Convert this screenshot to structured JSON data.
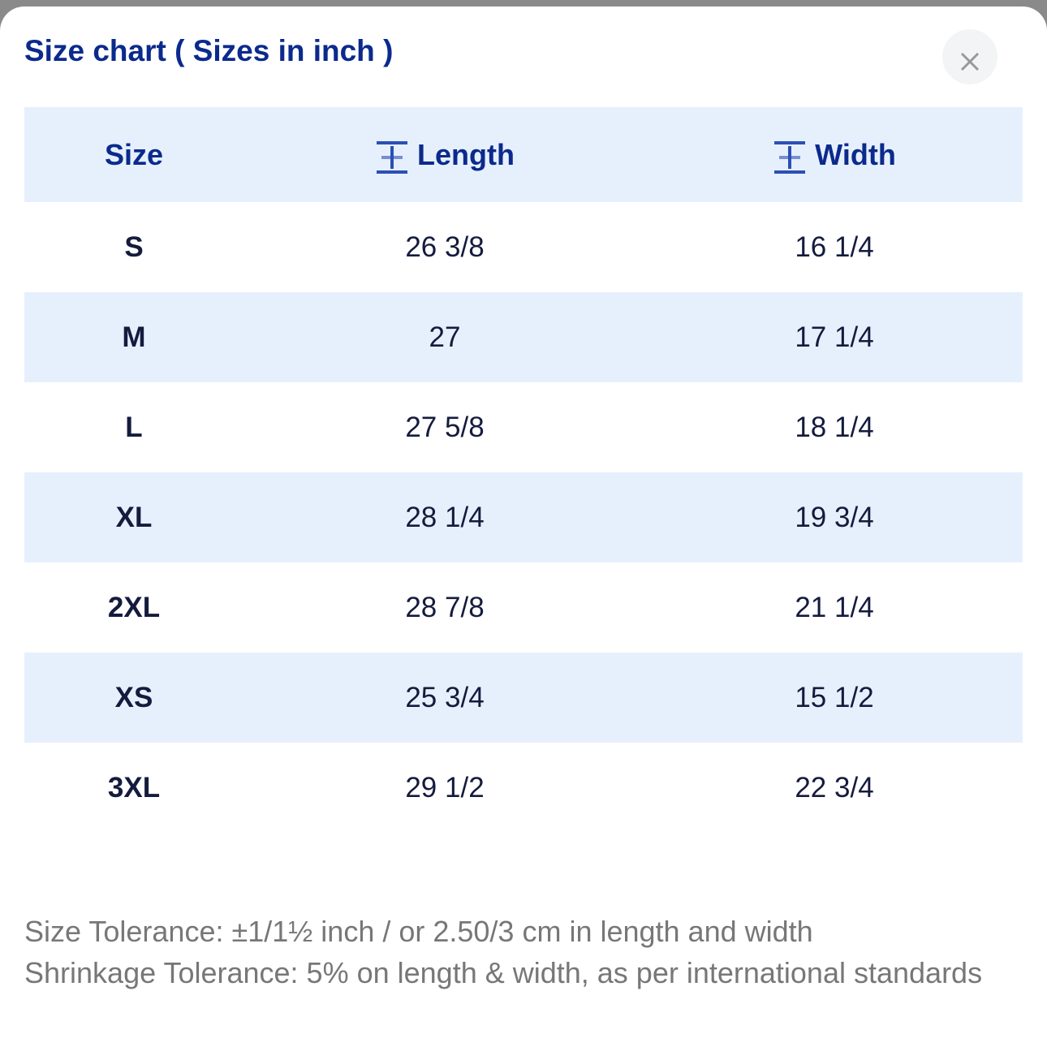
{
  "header": {
    "title": "Size chart ( Sizes in inch )"
  },
  "table": {
    "columns": [
      "Size",
      "Length",
      "Width"
    ],
    "rows": [
      [
        "S",
        "26 3/8",
        "16 1/4"
      ],
      [
        "M",
        "27",
        "17 1/4"
      ],
      [
        "L",
        "27 5/8",
        "18 1/4"
      ],
      [
        "XL",
        "28 1/4",
        "19 3/4"
      ],
      [
        "2XL",
        "28 7/8",
        "21 1/4"
      ],
      [
        "XS",
        "25 3/4",
        "15 1/2"
      ],
      [
        "3XL",
        "29 1/2",
        "22 3/4"
      ]
    ]
  },
  "notes": [
    "Size Tolerance: ±1/1½ inch / or 2.50/3 cm in length and width",
    "Shrinkage Tolerance: 5% on length & width, as per international standards"
  ]
}
